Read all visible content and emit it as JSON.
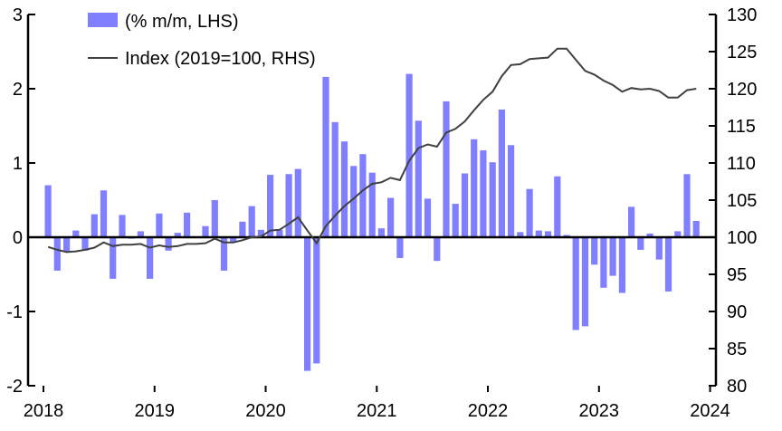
{
  "chart_data": {
    "type": "bar+line",
    "title": "",
    "x_ticks": [
      "2018",
      "2019",
      "2020",
      "2021",
      "2022",
      "2023",
      "2024"
    ],
    "y_left": {
      "lim": [
        -2,
        3
      ],
      "ticks": [
        "-2",
        "-1",
        "0",
        "1",
        "2",
        "3"
      ]
    },
    "y_right": {
      "lim": [
        80,
        130
      ],
      "ticks": [
        "80",
        "85",
        "90",
        "95",
        "100",
        "105",
        "110",
        "115",
        "120",
        "125",
        "130"
      ]
    },
    "legend_position": "top-left",
    "grid": false,
    "start_month": "2018-01",
    "series": [
      {
        "name": "(% m/m, LHS)",
        "type": "bar",
        "axis": "left",
        "color": "#7f7fff",
        "values": [
          0.7,
          -0.45,
          -0.2,
          0.09,
          -0.18,
          0.31,
          0.63,
          -0.56,
          0.3,
          -0.02,
          0.08,
          -0.56,
          0.32,
          -0.18,
          0.06,
          0.33,
          0.0,
          0.15,
          0.5,
          -0.45,
          -0.07,
          0.21,
          0.42,
          0.1,
          0.84,
          0.1,
          0.85,
          0.92,
          -1.8,
          -1.7,
          2.16,
          1.55,
          1.29,
          0.96,
          1.12,
          0.87,
          0.12,
          0.53,
          -0.28,
          2.2,
          1.57,
          0.52,
          -0.32,
          1.83,
          0.45,
          0.86,
          1.32,
          1.17,
          1.01,
          1.72,
          1.24,
          0.07,
          0.65,
          0.09,
          0.08,
          0.82,
          0.03,
          -1.25,
          -1.2,
          -0.37,
          -0.68,
          -0.52,
          -0.75,
          0.41,
          -0.17,
          0.05,
          -0.3,
          -0.73,
          0.08,
          0.85,
          0.22
        ]
      },
      {
        "name": "Index (2019=100, RHS)",
        "type": "line",
        "axis": "right",
        "color": "#404040",
        "values": [
          98.7,
          98.3,
          98.0,
          98.1,
          98.3,
          98.6,
          99.3,
          98.8,
          99.0,
          99.0,
          99.1,
          98.6,
          98.9,
          98.7,
          98.8,
          99.1,
          99.1,
          99.2,
          99.8,
          99.3,
          99.3,
          99.6,
          100.0,
          100.1,
          100.9,
          101.0,
          101.8,
          102.7,
          100.9,
          99.2,
          101.5,
          102.9,
          104.2,
          105.2,
          106.3,
          107.2,
          107.4,
          108.0,
          107.7,
          110.3,
          112.0,
          112.5,
          112.2,
          114.1,
          114.6,
          115.6,
          117.1,
          118.5,
          119.6,
          121.7,
          123.2,
          123.3,
          124.0,
          124.1,
          124.2,
          125.4,
          125.4,
          123.9,
          122.4,
          121.9,
          121.1,
          120.5,
          119.6,
          120.1,
          119.9,
          120.0,
          119.7,
          118.8,
          118.8,
          119.8,
          120.0
        ]
      }
    ]
  }
}
